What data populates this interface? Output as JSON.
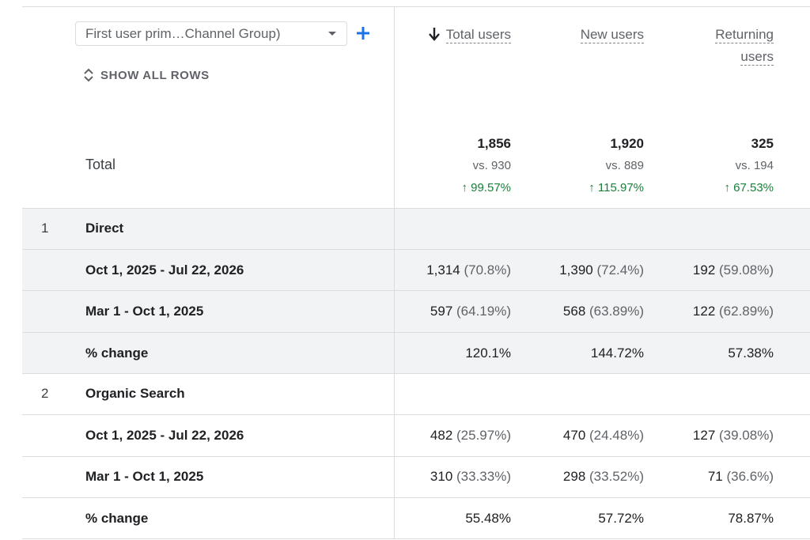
{
  "dimension": {
    "selector_label": "First user prim…Channel Group)",
    "show_all_rows_label": "SHOW ALL ROWS"
  },
  "columns": [
    {
      "label": "Total users",
      "sorted": true
    },
    {
      "label": "New users"
    },
    {
      "label": "Returning",
      "label_line2": "users"
    }
  ],
  "totals": {
    "label": "Total",
    "cells": [
      {
        "value": "1,856",
        "vs": "vs. 930",
        "change": "99.57%"
      },
      {
        "value": "1,920",
        "vs": "vs. 889",
        "change": "115.97%"
      },
      {
        "value": "325",
        "vs": "vs. 194",
        "change": "67.53%"
      }
    ]
  },
  "groups": [
    {
      "rank": "1",
      "name": "Direct",
      "rows": [
        {
          "label": "Oct 1, 2025 - Jul 22, 2026",
          "cells": [
            {
              "value": "1,314",
              "pct": "(70.8%)"
            },
            {
              "value": "1,390",
              "pct": "(72.4%)"
            },
            {
              "value": "192",
              "pct": "(59.08%)"
            }
          ]
        },
        {
          "label": "Mar 1 - Oct 1, 2025",
          "cells": [
            {
              "value": "597",
              "pct": "(64.19%)"
            },
            {
              "value": "568",
              "pct": "(63.89%)"
            },
            {
              "value": "122",
              "pct": "(62.89%)"
            }
          ]
        },
        {
          "label": "% change",
          "cells": [
            {
              "value": "120.1%",
              "pct": ""
            },
            {
              "value": "144.72%",
              "pct": ""
            },
            {
              "value": "57.38%",
              "pct": ""
            }
          ]
        }
      ]
    },
    {
      "rank": "2",
      "name": "Organic Search",
      "rows": [
        {
          "label": "Oct 1, 2025 - Jul 22, 2026",
          "cells": [
            {
              "value": "482",
              "pct": "(25.97%)"
            },
            {
              "value": "470",
              "pct": "(24.48%)"
            },
            {
              "value": "127",
              "pct": "(39.08%)"
            }
          ]
        },
        {
          "label": "Mar 1 - Oct 1, 2025",
          "cells": [
            {
              "value": "310",
              "pct": "(33.33%)"
            },
            {
              "value": "298",
              "pct": "(33.52%)"
            },
            {
              "value": "71",
              "pct": "(36.6%)"
            }
          ]
        },
        {
          "label": "% change",
          "cells": [
            {
              "value": "55.48%",
              "pct": ""
            },
            {
              "value": "57.72%",
              "pct": ""
            },
            {
              "value": "78.87%",
              "pct": ""
            }
          ]
        }
      ]
    }
  ],
  "colors": {
    "accent": "#1a73e8",
    "positive": "#188038",
    "row_band": "#f1f3f4",
    "divider": "#dadce0"
  },
  "icons": [
    "arrow-down-icon",
    "add-icon",
    "unfold-icon",
    "dropdown-caret-icon",
    "arrow-up-icon"
  ]
}
